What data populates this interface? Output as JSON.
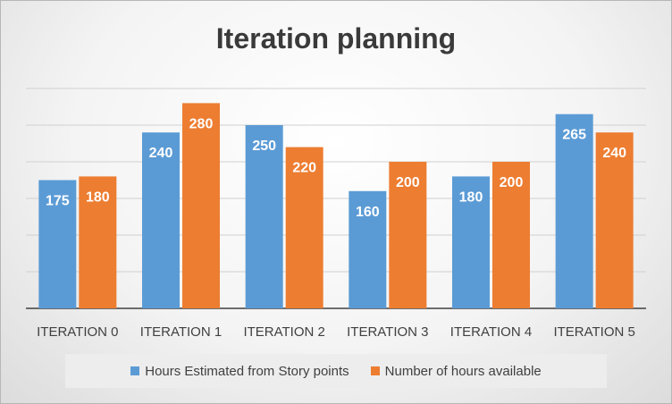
{
  "chart_data": {
    "type": "bar",
    "title": "Iteration planning",
    "xlabel": "",
    "ylabel": "",
    "categories": [
      "ITERATION 0",
      "ITERATION 1",
      "ITERATION 2",
      "ITERATION 3",
      "ITERATION 4",
      "ITERATION 5"
    ],
    "series": [
      {
        "name": "Hours Estimated from Story points",
        "color": "#5b9bd5",
        "values": [
          175,
          240,
          250,
          160,
          180,
          265
        ]
      },
      {
        "name": "Number of hours available",
        "color": "#ed7d31",
        "values": [
          180,
          280,
          220,
          200,
          200,
          240
        ]
      }
    ],
    "ylim": [
      0,
      300
    ],
    "gridlines": true,
    "gridline_step": 50,
    "y_tick_labels_shown": false,
    "data_labels": true,
    "legend_position": "bottom"
  }
}
